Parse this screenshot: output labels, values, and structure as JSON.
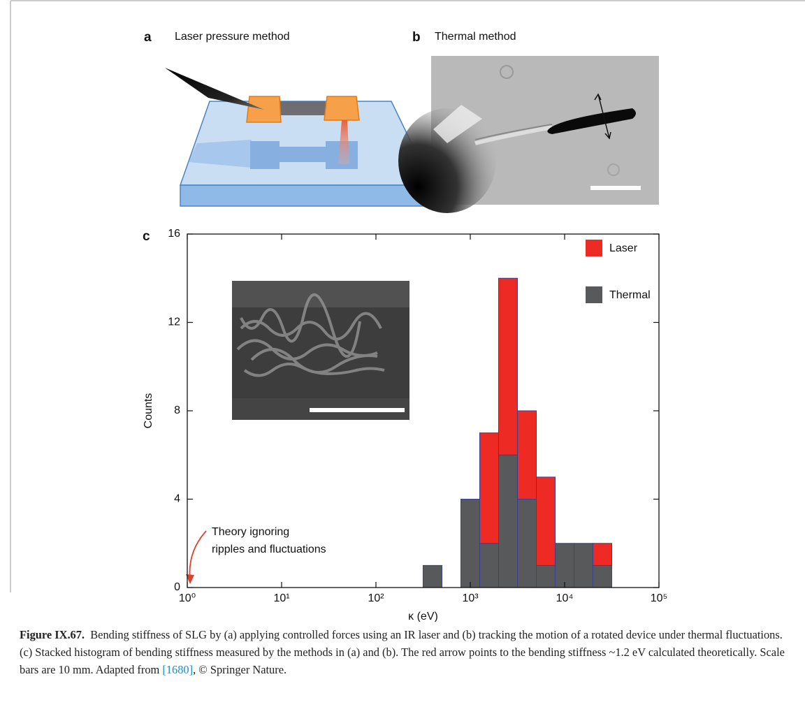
{
  "panels": {
    "a": {
      "label": "a",
      "title": "Laser pressure method"
    },
    "b": {
      "label": "b",
      "title": "Thermal method"
    }
  },
  "chart_data": {
    "type": "histogram",
    "panel_label": "c",
    "xlabel": "κ (eV)",
    "ylabel": "Counts",
    "xscale": "log",
    "xlim": [
      1,
      100000
    ],
    "xticks": [
      {
        "value": 1,
        "label": "10⁰"
      },
      {
        "value": 10,
        "label": "10¹"
      },
      {
        "value": 100,
        "label": "10²"
      },
      {
        "value": 1000,
        "label": "10³"
      },
      {
        "value": 10000,
        "label": "10⁴"
      },
      {
        "value": 100000,
        "label": "10⁵"
      }
    ],
    "ylim": [
      0,
      16
    ],
    "yticks": [
      0,
      4,
      8,
      12,
      16
    ],
    "stacked": true,
    "bins": [
      316,
      501,
      794,
      1259,
      1995,
      3162,
      5012,
      7943,
      12589,
      19953,
      31623
    ],
    "series": [
      {
        "name": "Thermal",
        "color": "#58595b",
        "values": [
          1,
          0,
          4,
          2,
          6,
          4,
          1,
          2,
          2,
          1
        ]
      },
      {
        "name": "Laser",
        "color": "#ee2a24",
        "values": [
          0,
          0,
          0,
          5,
          8,
          4,
          4,
          0,
          0,
          1
        ]
      }
    ],
    "legend": "upper right",
    "annotation": [
      "Theory ignoring",
      "ripples and fluctuations"
    ]
  },
  "caption": {
    "label": "Figure IX.67.",
    "text": "Bending stiffness of SLG by (a) applying controlled forces using an IR laser and (b) tracking the motion of a rotated device under thermal fluctuations. (c) Stacked histogram of bending stiffness measured by the methods in (a) and (b). The red arrow points to the bending stiffness ~1.2 eV calculated theoretically. Scale bars are 10 mm. Adapted from ",
    "ref": "[1680]",
    "tail": ", © Springer Nature."
  }
}
